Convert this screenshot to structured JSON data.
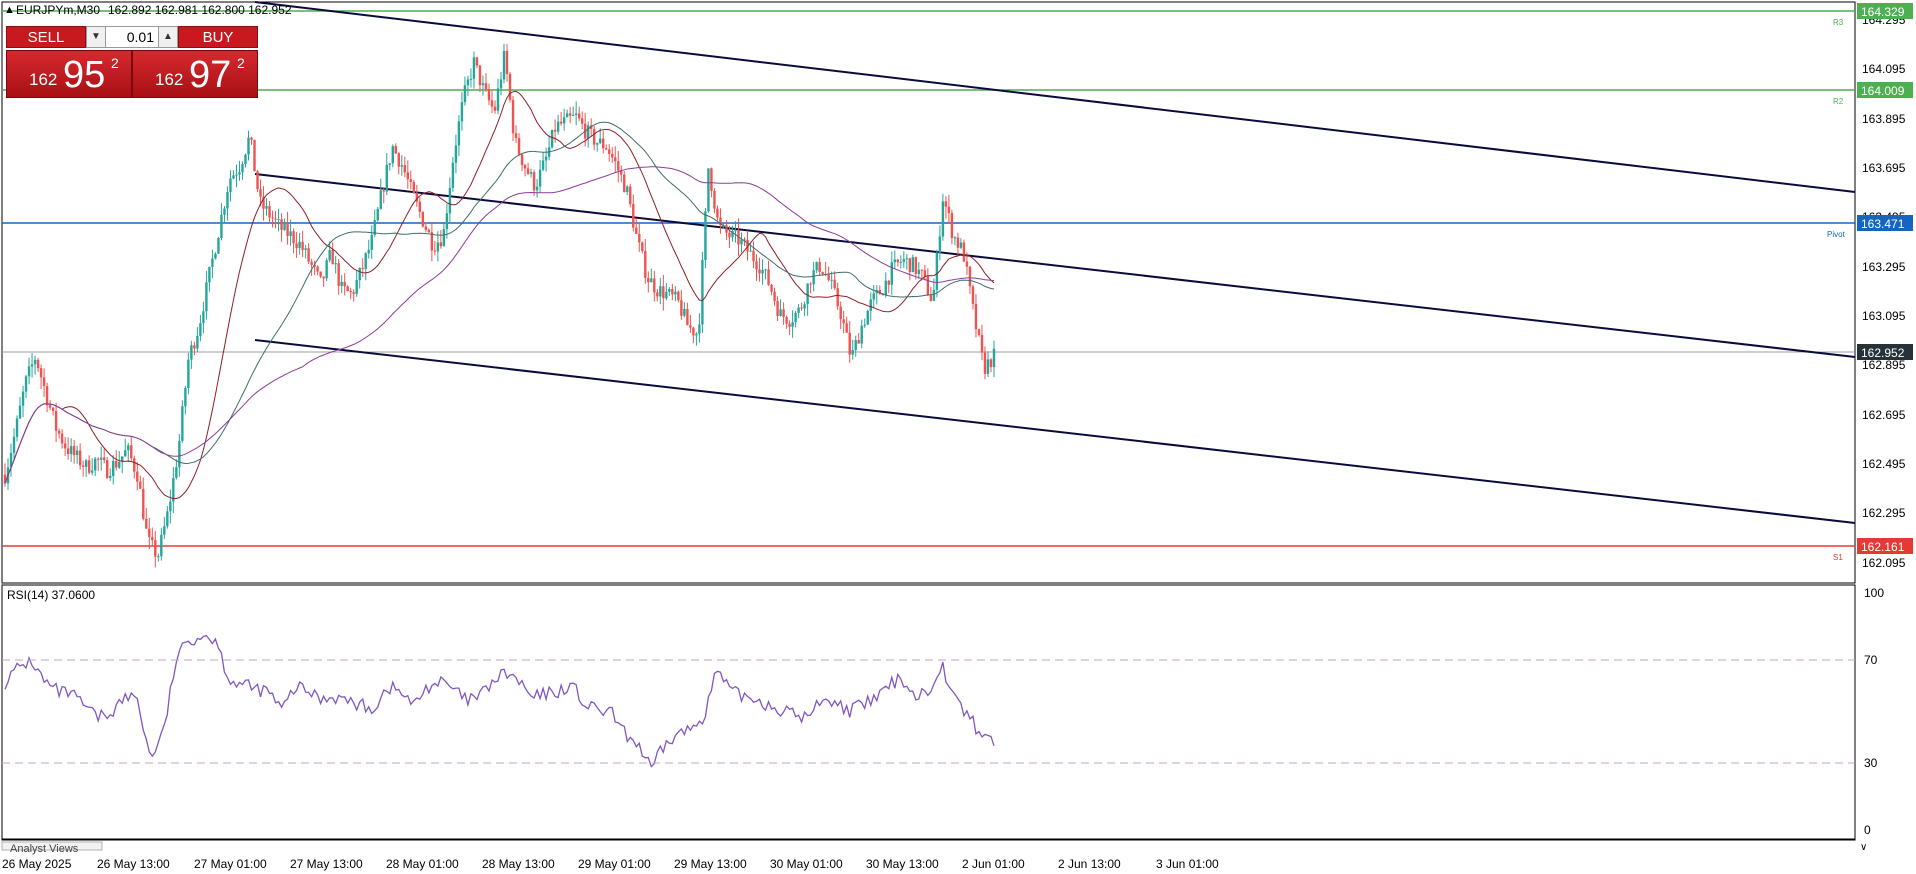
{
  "header": {
    "symbol_label": "EURJPYm,M30",
    "ohlc": "162.892 162.981 162.800 162.952"
  },
  "trade_panel": {
    "sell_label": "SELL",
    "buy_label": "BUY",
    "volume": "0.01",
    "sell_quote": {
      "small": "162",
      "big": "95",
      "sup": "2"
    },
    "buy_quote": {
      "small": "162",
      "big": "97",
      "sup": "2"
    }
  },
  "price_axis": {
    "ticks": [
      "164.295",
      "164.095",
      "163.895",
      "163.695",
      "163.495",
      "163.295",
      "163.095",
      "162.895",
      "162.695",
      "162.495",
      "162.295",
      "162.095"
    ],
    "badges": {
      "r3": "164.329",
      "r2": "164.009",
      "pivot": "163.471",
      "current": "162.952",
      "s1": "162.161"
    }
  },
  "level_labels": {
    "r3": "R3",
    "r2": "R2",
    "pivot": "Pivot",
    "s1": "S1"
  },
  "rsi": {
    "label": "RSI(14) 37.0600",
    "ticks": [
      "100",
      "70",
      "30",
      "0"
    ]
  },
  "time_axis": {
    "labels": [
      "26 May 2025",
      "26 May 13:00",
      "27 May 01:00",
      "27 May 13:00",
      "28 May 01:00",
      "28 May 13:00",
      "29 May 01:00",
      "29 May 13:00",
      "30 May 01:00",
      "30 May 13:00",
      "2 Jun 01:00",
      "2 Jun 13:00",
      "3 Jun 01:00"
    ]
  },
  "bottom_tab": {
    "label": "Analyst Views"
  },
  "colors": {
    "bull": "#26a69a",
    "bear": "#ef5350",
    "r_line": "#4caf50",
    "pivot_line": "#1565c0",
    "s_line": "#e53935",
    "channel": "#0a0a3c",
    "rsi_line": "#7e57c2"
  },
  "chart_data": {
    "type": "candlestick",
    "symbol": "EURJPYm",
    "timeframe": "M30",
    "ylim": [
      162.06,
      164.35
    ],
    "levels": {
      "R3": 164.329,
      "R2": 164.009,
      "Pivot": 163.471,
      "S1": 162.161,
      "current": 162.952
    },
    "close_path": [
      162.45,
      162.62,
      162.82,
      162.93,
      162.78,
      162.64,
      162.56,
      162.52,
      162.48,
      162.51,
      162.47,
      162.5,
      162.55,
      162.45,
      162.18,
      162.12,
      162.3,
      162.55,
      162.92,
      163.05,
      163.25,
      163.45,
      163.65,
      163.7,
      163.82,
      163.55,
      163.5,
      163.45,
      163.42,
      163.38,
      163.3,
      163.22,
      163.35,
      163.2,
      163.18,
      163.28,
      163.4,
      163.6,
      163.78,
      163.7,
      163.58,
      163.48,
      163.38,
      163.42,
      163.75,
      163.98,
      164.12,
      164.0,
      163.92,
      164.15,
      163.8,
      163.7,
      163.62,
      163.72,
      163.86,
      163.88,
      163.9,
      163.84,
      163.8,
      163.78,
      163.7,
      163.6,
      163.4,
      163.25,
      163.2,
      163.18,
      163.15,
      163.05,
      163.02,
      163.7,
      163.45,
      163.42,
      163.4,
      163.35,
      163.3,
      163.22,
      163.1,
      163.08,
      163.12,
      163.25,
      163.3,
      163.22,
      163.1,
      162.92,
      163.05,
      163.15,
      163.2,
      163.28,
      163.32,
      163.3,
      163.25,
      163.15,
      163.58,
      163.42,
      163.35,
      163.1,
      162.88,
      162.93
    ],
    "rsi_path": [
      62,
      68,
      71,
      62,
      58,
      57,
      52,
      47,
      49,
      55,
      56,
      30,
      40,
      72,
      80,
      82,
      80,
      63,
      61,
      59,
      58,
      50,
      60,
      58,
      55,
      56,
      54,
      52,
      51,
      60,
      58,
      52,
      60,
      62,
      59,
      54,
      56,
      62,
      66,
      62,
      55,
      57,
      58,
      61,
      52,
      50,
      49,
      40,
      36,
      25,
      35,
      40,
      42,
      48,
      67,
      58,
      56,
      55,
      52,
      50,
      48,
      47,
      56,
      53,
      50,
      52,
      55,
      60,
      64,
      56,
      58,
      70,
      55,
      48,
      40,
      37
    ],
    "rsi_levels": [
      70,
      30
    ],
    "rsi_value": 37.06,
    "x_labels": [
      "26 May 2025",
      "26 May 13:00",
      "27 May 01:00",
      "27 May 13:00",
      "28 May 01:00",
      "28 May 13:00",
      "29 May 01:00",
      "29 May 13:00",
      "30 May 01:00",
      "30 May 13:00",
      "2 Jun 01:00",
      "2 Jun 13:00",
      "3 Jun 01:00"
    ]
  }
}
